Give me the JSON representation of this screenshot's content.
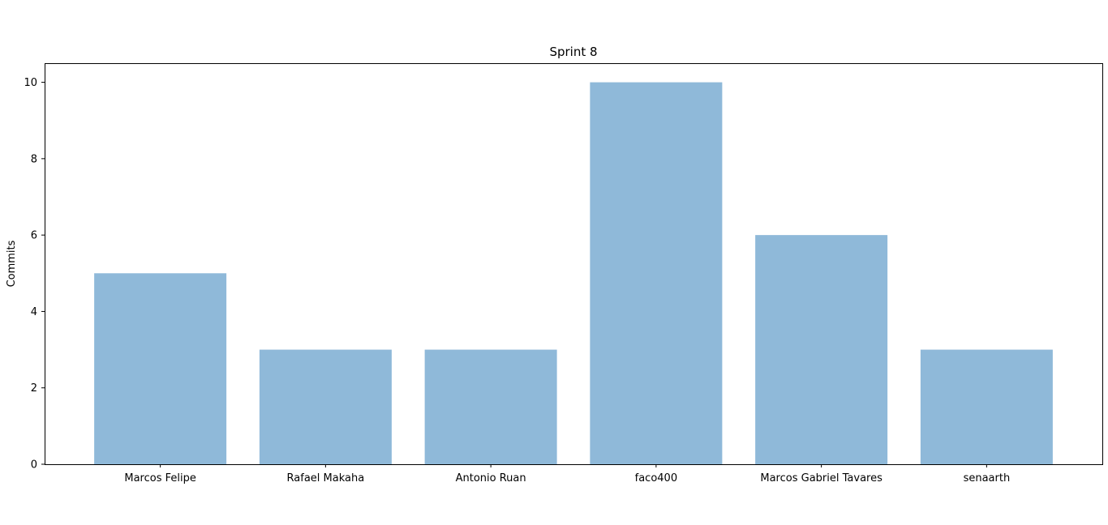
{
  "chart_data": {
    "type": "bar",
    "title": "Sprint 8",
    "xlabel": "",
    "ylabel": "Commits",
    "categories": [
      "Marcos Felipe",
      "Rafael Makaha",
      "Antonio Ruan",
      "faco400",
      "Marcos Gabriel Tavares",
      "senaarth"
    ],
    "values": [
      5,
      3,
      3,
      10,
      6,
      3
    ],
    "ylim": [
      0,
      10.5
    ],
    "yticks": [
      "0",
      "2",
      "4",
      "6",
      "8",
      "10"
    ],
    "grid": false,
    "legend": "none",
    "bar_color": "#8fb9d9"
  }
}
